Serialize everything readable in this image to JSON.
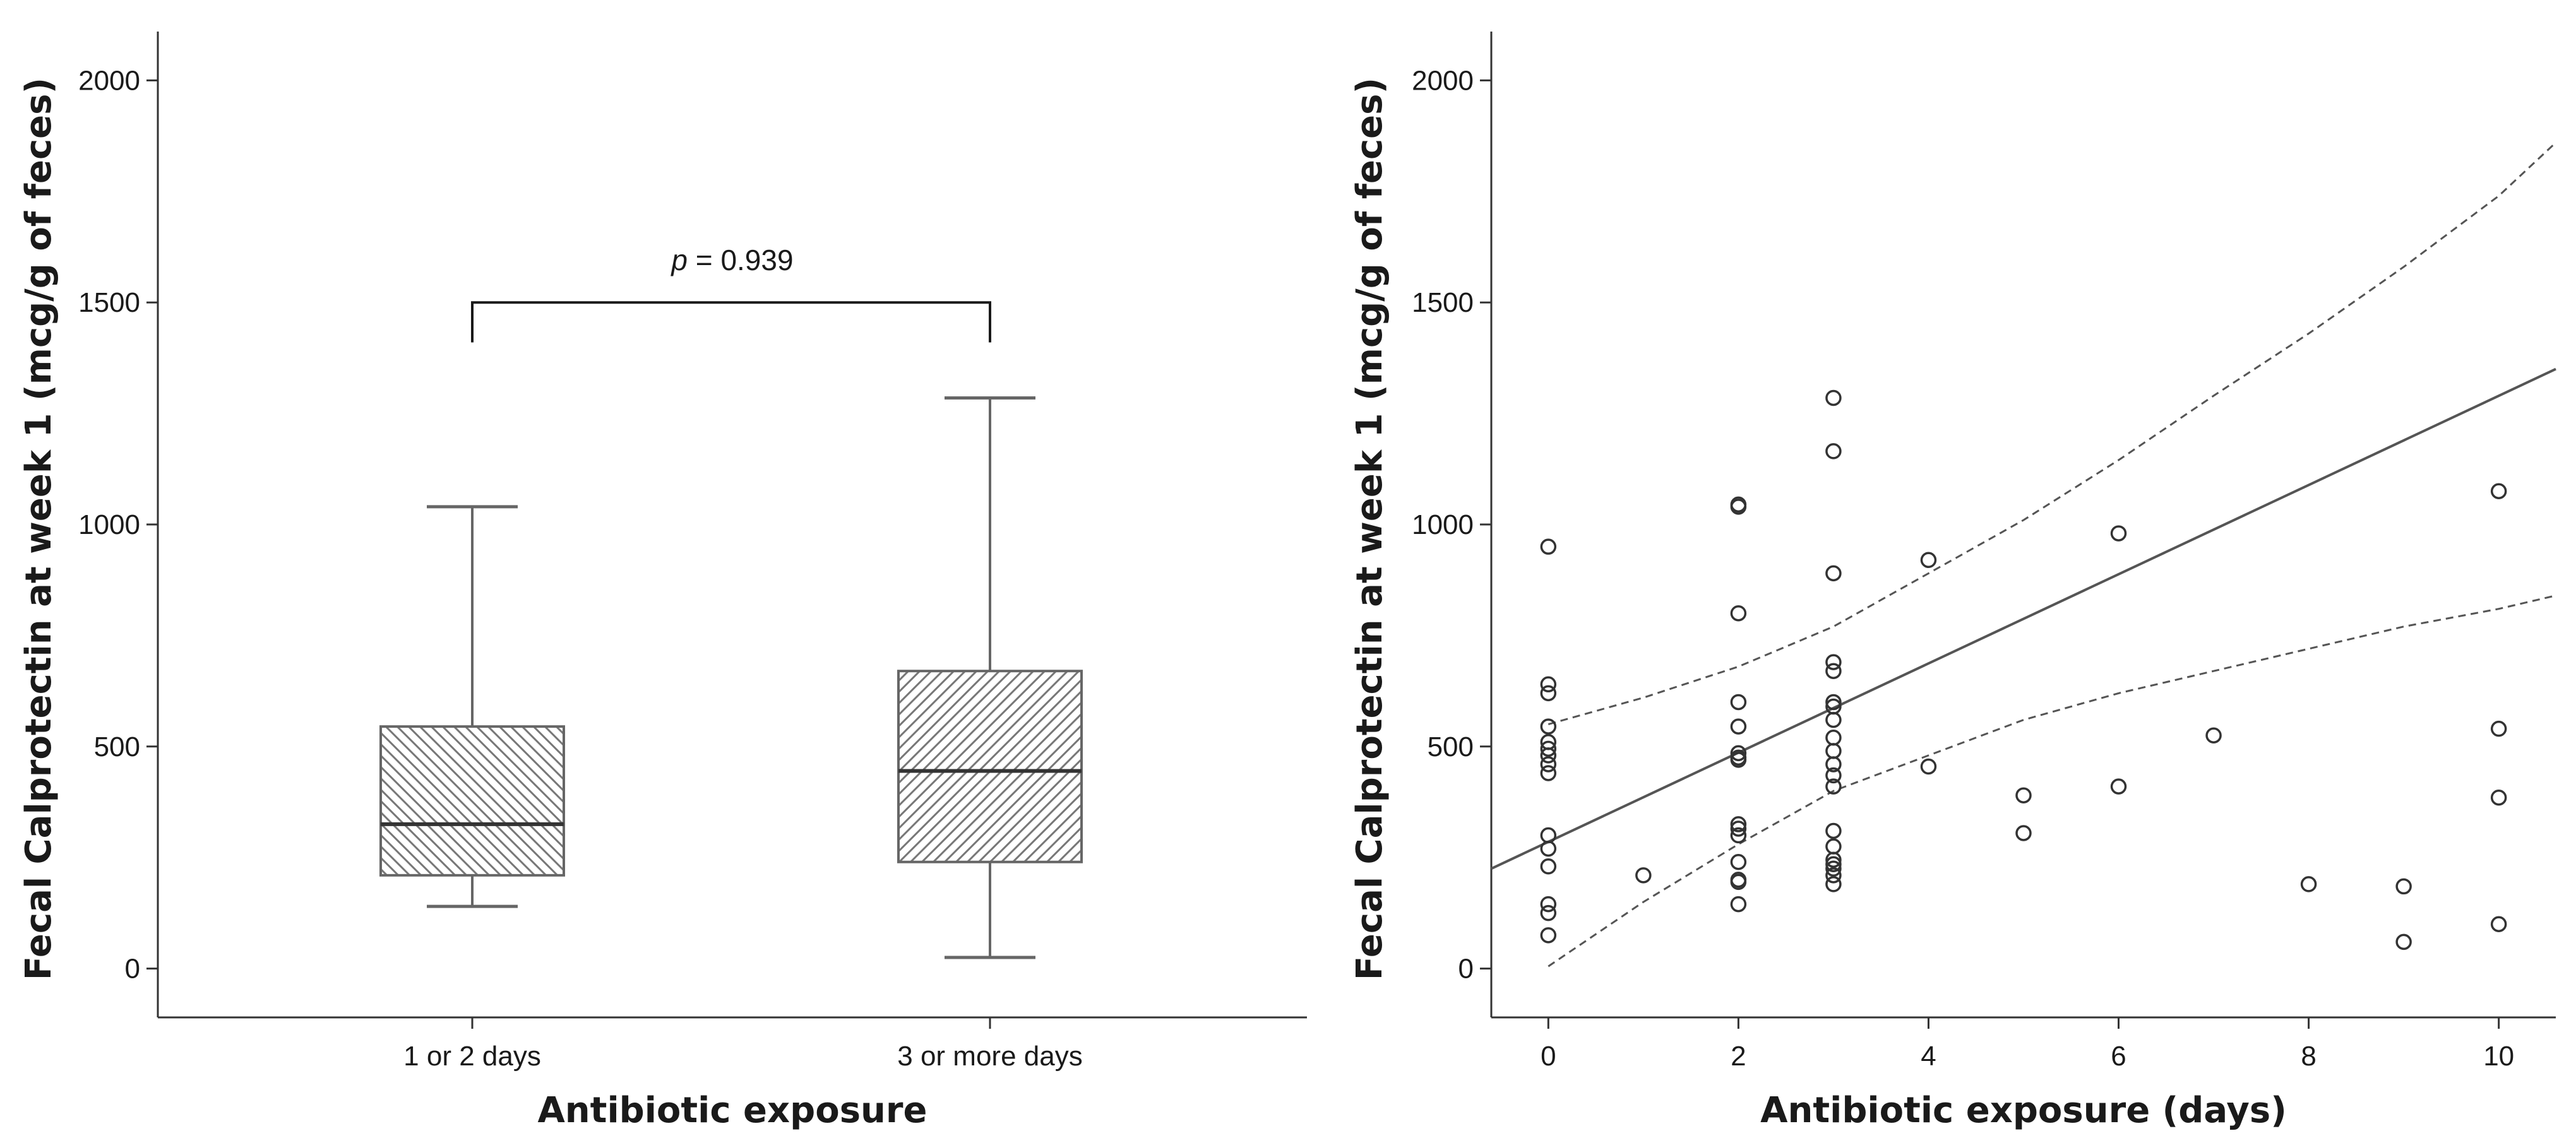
{
  "chart_data": [
    {
      "type": "box",
      "xlabel": "Antibiotic exposure",
      "ylabel": "Fecal Calprotectin at week 1 (mcg/g of feces)",
      "ylim": [
        -110,
        2110
      ],
      "yticks": [
        0,
        500,
        1000,
        1500,
        2000
      ],
      "categories": [
        "1 or 2 days",
        "3 or more days"
      ],
      "boxes": [
        {
          "category": "1 or 2 days",
          "min": 140,
          "q1": 210,
          "median": 325,
          "q3": 545,
          "max": 1040,
          "hatch": "backslash"
        },
        {
          "category": "3 or more days",
          "min": 25,
          "q1": 240,
          "median": 445,
          "q3": 670,
          "max": 1285,
          "hatch": "slash"
        }
      ],
      "annotation": {
        "prefix": "p",
        "text": " = 0.939",
        "bracket_y": 1500,
        "bracket_drop": 90
      },
      "grid": false,
      "colors": {
        "axis": "#333333",
        "box_edge": "#666666",
        "hatch": "#777777",
        "median": "#333333"
      }
    },
    {
      "type": "scatter",
      "xlabel": "Antibiotic exposure (days)",
      "ylabel": "Fecal Calprotectin at week 1 (mcg/g of feces)",
      "xlim": [
        -0.6,
        10.6
      ],
      "ylim": [
        -110,
        2110
      ],
      "xticks": [
        0,
        2,
        4,
        6,
        8,
        10
      ],
      "yticks": [
        0,
        500,
        1000,
        1500,
        2000
      ],
      "points": [
        {
          "x": 0,
          "y": 950
        },
        {
          "x": 0,
          "y": 640
        },
        {
          "x": 0,
          "y": 620
        },
        {
          "x": 0,
          "y": 545
        },
        {
          "x": 0,
          "y": 510
        },
        {
          "x": 0,
          "y": 495
        },
        {
          "x": 0,
          "y": 480
        },
        {
          "x": 0,
          "y": 460
        },
        {
          "x": 0,
          "y": 440
        },
        {
          "x": 0,
          "y": 300
        },
        {
          "x": 0,
          "y": 270
        },
        {
          "x": 0,
          "y": 230
        },
        {
          "x": 0,
          "y": 145
        },
        {
          "x": 0,
          "y": 125
        },
        {
          "x": 0,
          "y": 75
        },
        {
          "x": 1,
          "y": 210
        },
        {
          "x": 2,
          "y": 1045
        },
        {
          "x": 2,
          "y": 1040
        },
        {
          "x": 2,
          "y": 800
        },
        {
          "x": 2,
          "y": 600
        },
        {
          "x": 2,
          "y": 545
        },
        {
          "x": 2,
          "y": 485
        },
        {
          "x": 2,
          "y": 475
        },
        {
          "x": 2,
          "y": 470
        },
        {
          "x": 2,
          "y": 325
        },
        {
          "x": 2,
          "y": 315
        },
        {
          "x": 2,
          "y": 300
        },
        {
          "x": 2,
          "y": 240
        },
        {
          "x": 2,
          "y": 200
        },
        {
          "x": 2,
          "y": 195
        },
        {
          "x": 2,
          "y": 145
        },
        {
          "x": 3,
          "y": 1285
        },
        {
          "x": 3,
          "y": 1165
        },
        {
          "x": 3,
          "y": 890
        },
        {
          "x": 3,
          "y": 690
        },
        {
          "x": 3,
          "y": 670
        },
        {
          "x": 3,
          "y": 600
        },
        {
          "x": 3,
          "y": 590
        },
        {
          "x": 3,
          "y": 560
        },
        {
          "x": 3,
          "y": 520
        },
        {
          "x": 3,
          "y": 490
        },
        {
          "x": 3,
          "y": 460
        },
        {
          "x": 3,
          "y": 435
        },
        {
          "x": 3,
          "y": 410
        },
        {
          "x": 3,
          "y": 310
        },
        {
          "x": 3,
          "y": 275
        },
        {
          "x": 3,
          "y": 245
        },
        {
          "x": 3,
          "y": 235
        },
        {
          "x": 3,
          "y": 225
        },
        {
          "x": 3,
          "y": 210
        },
        {
          "x": 3,
          "y": 190
        },
        {
          "x": 4,
          "y": 920
        },
        {
          "x": 4,
          "y": 455
        },
        {
          "x": 5,
          "y": 390
        },
        {
          "x": 5,
          "y": 305
        },
        {
          "x": 6,
          "y": 980
        },
        {
          "x": 6,
          "y": 410
        },
        {
          "x": 7,
          "y": 525
        },
        {
          "x": 8,
          "y": 190
        },
        {
          "x": 9,
          "y": 185
        },
        {
          "x": 9,
          "y": 60
        },
        {
          "x": 10,
          "y": 1075
        },
        {
          "x": 10,
          "y": 540
        },
        {
          "x": 10,
          "y": 385
        },
        {
          "x": 10,
          "y": 100
        }
      ],
      "fit_line": {
        "x": [
          -0.6,
          10.6
        ],
        "y": [
          225,
          1350
        ]
      },
      "ci_upper": {
        "x": [
          0,
          1,
          2,
          3,
          4,
          5,
          6,
          7,
          8,
          9,
          10,
          10.6
        ],
        "y": [
          550,
          610,
          680,
          770,
          890,
          1010,
          1145,
          1290,
          1430,
          1580,
          1740,
          1860
        ]
      },
      "ci_lower": {
        "x": [
          0,
          1,
          2,
          3,
          4,
          5,
          6,
          7,
          8,
          9,
          10,
          10.6
        ],
        "y": [
          5,
          150,
          280,
          400,
          480,
          560,
          620,
          670,
          720,
          770,
          810,
          840
        ]
      },
      "grid": false,
      "colors": {
        "axis": "#333333",
        "marker": "#333333",
        "fit": "#555555",
        "ci": "#555555"
      }
    }
  ]
}
